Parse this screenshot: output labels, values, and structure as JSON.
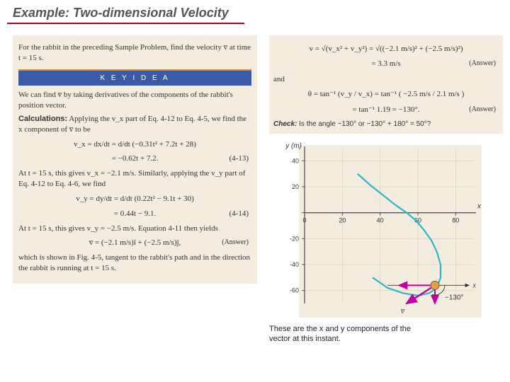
{
  "title": "Example: Two-dimensional Velocity",
  "left": {
    "intro": "For the rabbit in the preceding Sample Problem, find the velocity v̅ at time t = 15 s.",
    "key_idea_label": "K E Y   I D E A",
    "key_idea_text": "We can find v̅ by taking derivatives of the components of the rabbit's position vector.",
    "calc_label": "Calculations:",
    "calc_intro": " Applying the v_x part of Eq. 4-12 to Eq. 4-5, we find the x component of v̅ to be",
    "eq_vx_a": "v_x  =  dx/dt  =  d/dt (−0.31t² + 7.2t + 28)",
    "eq_vx_b": "=  −0.62t + 7.2.",
    "eq_vx_num": "(4-13)",
    "line_vx15": "At t = 15 s, this gives v_x = −2.1 m/s. Similarly, applying the v_y part of Eq. 4-12 to Eq. 4-6, we find",
    "eq_vy_a": "v_y  =  dy/dt  =  d/dt (0.22t² − 9.1t + 30)",
    "eq_vy_b": "=  0.44t − 9.1.",
    "eq_vy_num": "(4-14)",
    "line_vy15": "At t = 15 s, this gives v_y = −2.5 m/s. Equation 4-11 then yields",
    "eq_v": "v̅  =  (−2.1 m/s)î  +  (−2.5 m/s)ĵ,",
    "eq_v_answer": "(Answer)",
    "closing": "which is shown in Fig. 4-5, tangent to the rabbit's path and in the direction the rabbit is running at t = 15 s."
  },
  "right": {
    "eq_mag_a": "v  =  √(v_x² + v_y²)  =  √((−2.1 m/s)² + (−2.5 m/s)²)",
    "eq_mag_b": "=  3.3 m/s",
    "eq_mag_ans": "(Answer)",
    "and_label": "and",
    "eq_th_a": "θ  =  tan⁻¹ (v_y / v_x)  =  tan⁻¹ ( −2.5 m/s  /  2.1 m/s )",
    "eq_th_b": "=  tan⁻¹ 1.19  =  −130°.",
    "eq_th_ans": "(Answer)",
    "check_label": "Check:",
    "check_text": " Is the angle −130° or −130° + 180° = 50°?",
    "caption": "These are the x and y components of the vector at this instant."
  },
  "chart": {
    "type": "line",
    "x_label": "x (m)",
    "y_label": "y (m)",
    "xlim": [
      0,
      90
    ],
    "ylim": [
      -70,
      50
    ],
    "xtick_step": 20,
    "ytick_step": 20,
    "xtick_labels": [
      "0",
      "20",
      "40",
      "60",
      "80"
    ],
    "ytick_labels": [
      "40",
      "20",
      "0",
      "-20",
      "-40",
      "-60"
    ],
    "curve_color": "#2bb6c9",
    "grid_color": "#d9cfa8",
    "axis_color": "#555555",
    "curve_points": [
      [
        28,
        30
      ],
      [
        35,
        21
      ],
      [
        42,
        13
      ],
      [
        48,
        6
      ],
      [
        54,
        0
      ],
      [
        59,
        -6
      ],
      [
        63,
        -13
      ],
      [
        67,
        -21
      ],
      [
        70,
        -30
      ],
      [
        72,
        -40
      ],
      [
        72,
        -50
      ],
      [
        70,
        -58
      ],
      [
        66,
        -62
      ],
      [
        60,
        -64
      ],
      [
        52,
        -62
      ],
      [
        44,
        -58
      ],
      [
        36,
        -50
      ]
    ],
    "rabbit_point": [
      69,
      -56
    ],
    "vx_arrow_end": [
      50,
      -56
    ],
    "vy_arrow_end": [
      69,
      -70
    ],
    "v_arrow_end": [
      54,
      -70
    ],
    "vec_color": "#c000a0",
    "angle_label": "−130°",
    "x_anchor_label": "x",
    "v_label": "v̅"
  }
}
